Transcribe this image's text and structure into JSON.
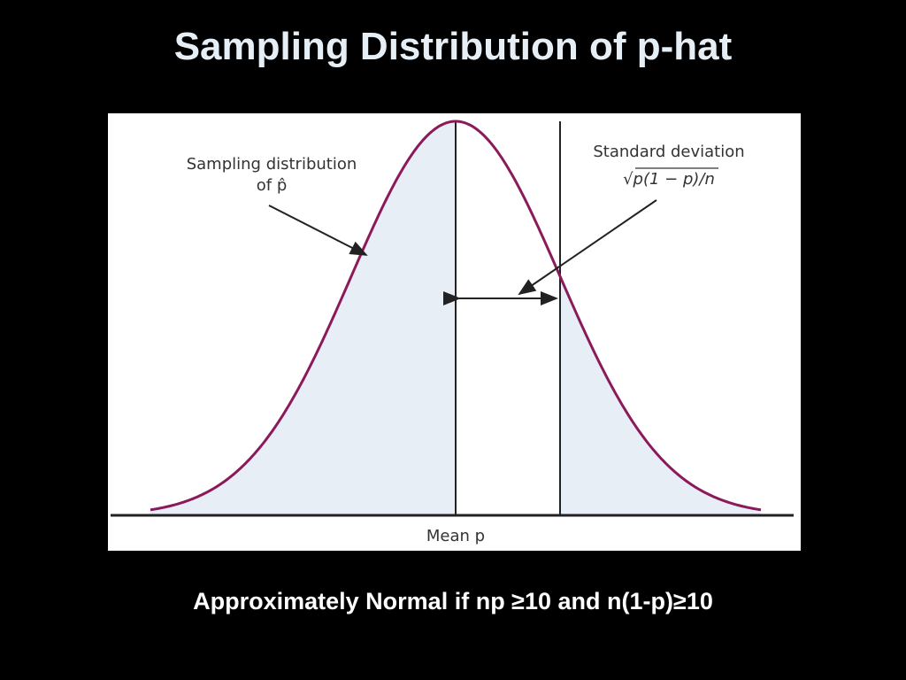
{
  "title": "Sampling Distribution of p-hat",
  "diagram": {
    "curve_label": {
      "line1": "Sampling distribution",
      "line2": "of p̂"
    },
    "sd_label": {
      "line1": "Standard deviation",
      "formula": "√p(1 − p)/n"
    },
    "mean_label": "Mean p"
  },
  "footer": "Approximately Normal if np ≥10 and n(1-p)≥10"
}
